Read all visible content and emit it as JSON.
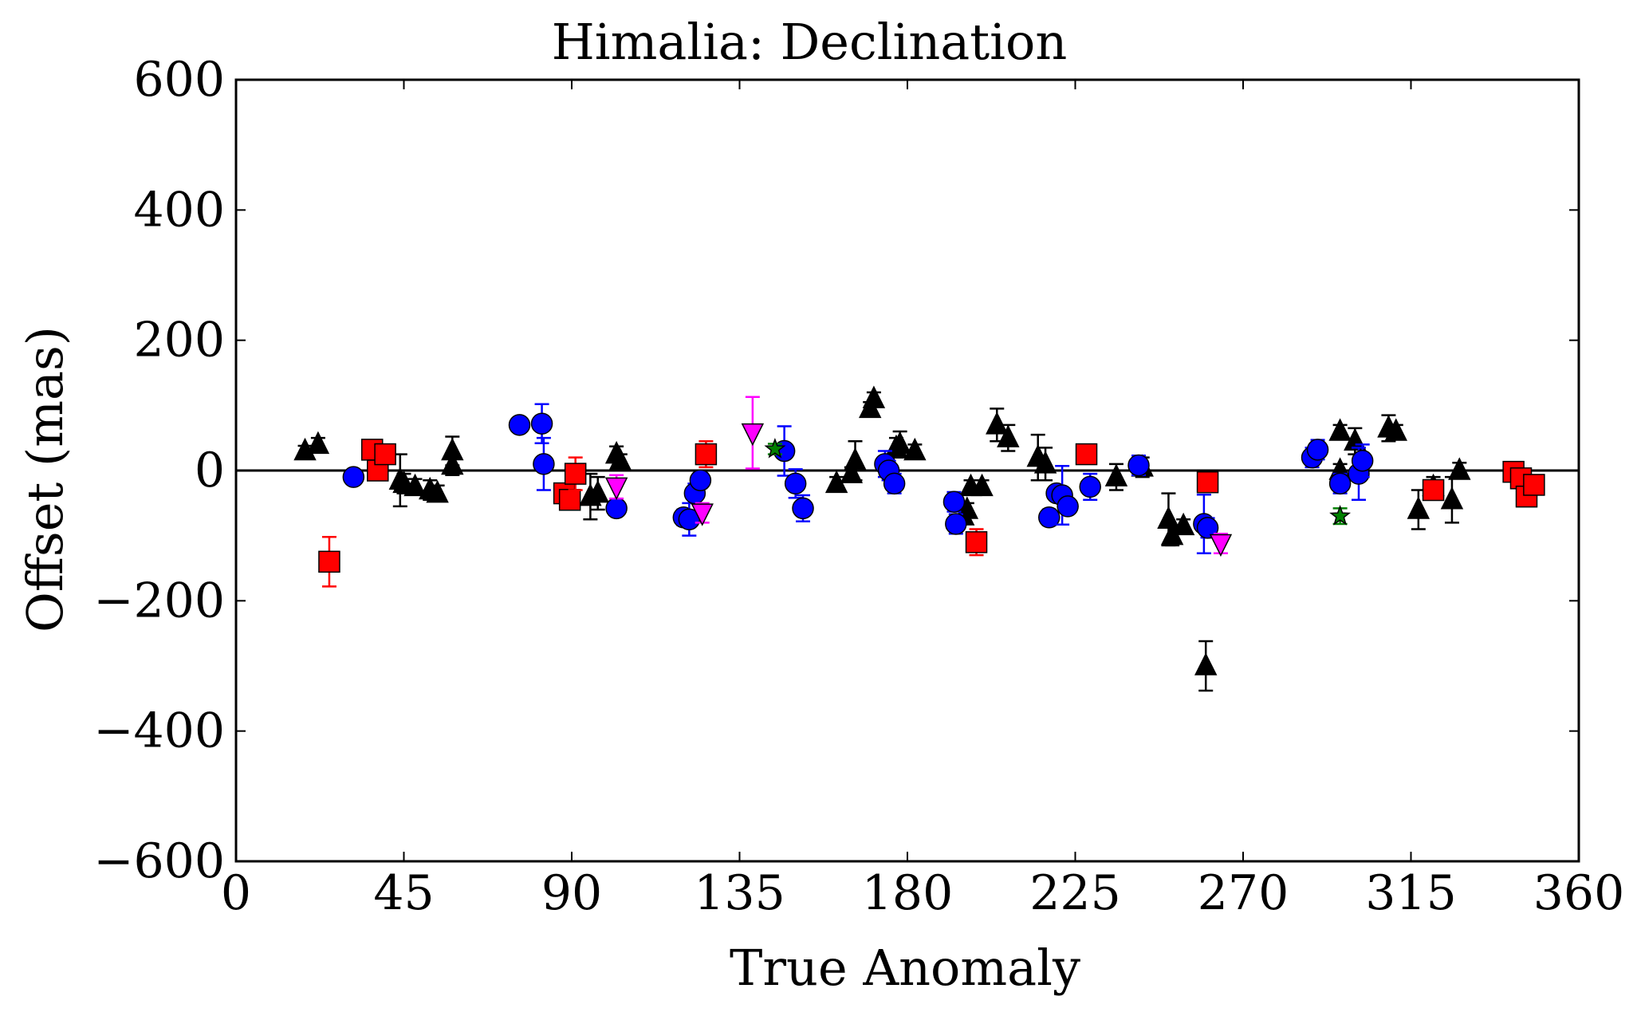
{
  "chart_data": {
    "type": "scatter",
    "title": "Himalia: Declination",
    "xlabel": "True Anomaly",
    "ylabel": "Offset (mas)",
    "xlim": [
      0,
      360
    ],
    "ylim": [
      -600,
      600
    ],
    "xticks": [
      0,
      45,
      90,
      135,
      180,
      225,
      270,
      315,
      360
    ],
    "yticks": [
      -600,
      -400,
      -200,
      0,
      200,
      400,
      600
    ],
    "xtick_labels": [
      "0",
      "45",
      "90",
      "135",
      "180",
      "225",
      "270",
      "315",
      "360"
    ],
    "ytick_labels": [
      "−600",
      "−400",
      "−200",
      "0",
      "200",
      "400",
      "600"
    ],
    "grid": false,
    "legend": false,
    "reference_line": {
      "y": 0
    },
    "series": [
      {
        "marker": "triangle-up",
        "color": "#000000",
        "errcolor": "#000000",
        "points": [
          {
            "x": 18.5,
            "y": 30,
            "err": 8
          },
          {
            "x": 22,
            "y": 40,
            "err": 10
          },
          {
            "x": 44,
            "y": -15,
            "err": 40
          },
          {
            "x": 45,
            "y": -20,
            "err": 15
          },
          {
            "x": 48,
            "y": -25,
            "err": 12
          },
          {
            "x": 52,
            "y": -30,
            "err": 15
          },
          {
            "x": 54,
            "y": -35,
            "err": 12
          },
          {
            "x": 58,
            "y": 8,
            "err": 15
          },
          {
            "x": 58,
            "y": 30,
            "err": 22
          },
          {
            "x": 95,
            "y": -40,
            "err": 35
          },
          {
            "x": 97,
            "y": -35,
            "err": 25
          },
          {
            "x": 102,
            "y": 25,
            "err": 12
          },
          {
            "x": 103,
            "y": 15,
            "err": 10
          },
          {
            "x": 161,
            "y": -20,
            "err": 10
          },
          {
            "x": 165,
            "y": -5,
            "err": 10
          },
          {
            "x": 166,
            "y": 15,
            "err": 30
          },
          {
            "x": 170,
            "y": 95,
            "err": 10
          },
          {
            "x": 171,
            "y": 110,
            "err": 10
          },
          {
            "x": 177,
            "y": 35,
            "err": 15
          },
          {
            "x": 178,
            "y": 40,
            "err": 20
          },
          {
            "x": 182,
            "y": 30,
            "err": 10
          },
          {
            "x": 195,
            "y": -70,
            "err": 10
          },
          {
            "x": 196,
            "y": -60,
            "err": 10
          },
          {
            "x": 197,
            "y": -25,
            "err": 10
          },
          {
            "x": 200,
            "y": -25,
            "err": 10
          },
          {
            "x": 204,
            "y": 70,
            "err": 25
          },
          {
            "x": 207,
            "y": 50,
            "err": 20
          },
          {
            "x": 215,
            "y": 20,
            "err": 35
          },
          {
            "x": 217,
            "y": 10,
            "err": 25
          },
          {
            "x": 236,
            "y": -10,
            "err": 20
          },
          {
            "x": 243,
            "y": 5,
            "err": 15
          },
          {
            "x": 250,
            "y": -75,
            "err": 40
          },
          {
            "x": 251,
            "y": -100,
            "err": 15
          },
          {
            "x": 254,
            "y": -85,
            "err": 10
          },
          {
            "x": 260,
            "y": -300,
            "err": 38
          },
          {
            "x": 296,
            "y": 60,
            "err": 10
          },
          {
            "x": 296,
            "y": 0,
            "err": 10
          },
          {
            "x": 300,
            "y": 45,
            "err": 20
          },
          {
            "x": 309,
            "y": 65,
            "err": 20
          },
          {
            "x": 311,
            "y": 60,
            "err": 10
          },
          {
            "x": 317,
            "y": -60,
            "err": 30
          },
          {
            "x": 321,
            "y": -25,
            "err": 15
          },
          {
            "x": 326,
            "y": -45,
            "err": 35
          },
          {
            "x": 328,
            "y": 0,
            "err": 12
          }
        ]
      },
      {
        "marker": "circle",
        "color": "#0000ff",
        "errcolor": "#0000ff",
        "points": [
          {
            "x": 31.5,
            "y": -10,
            "err": 8
          },
          {
            "x": 76,
            "y": 70,
            "err": 8
          },
          {
            "x": 82,
            "y": 72,
            "err": 30
          },
          {
            "x": 82.5,
            "y": 10,
            "err": 40
          },
          {
            "x": 102,
            "y": -58,
            "err": 10
          },
          {
            "x": 120,
            "y": -72,
            "err": 12
          },
          {
            "x": 121.5,
            "y": -75,
            "err": 25
          },
          {
            "x": 123,
            "y": -35,
            "err": 15
          },
          {
            "x": 124.5,
            "y": -15,
            "err": 12
          },
          {
            "x": 147,
            "y": 30,
            "err": 38
          },
          {
            "x": 150,
            "y": -20,
            "err": 22
          },
          {
            "x": 152,
            "y": -58,
            "err": 20
          },
          {
            "x": 174,
            "y": 10,
            "err": 20
          },
          {
            "x": 175,
            "y": 0,
            "err": 15
          },
          {
            "x": 176.5,
            "y": -20,
            "err": 15
          },
          {
            "x": 192.5,
            "y": -48,
            "err": 15
          },
          {
            "x": 193,
            "y": -82,
            "err": 15
          },
          {
            "x": 218,
            "y": -72,
            "err": 12
          },
          {
            "x": 220,
            "y": -35,
            "err": 10
          },
          {
            "x": 221.5,
            "y": -38,
            "err": 45
          },
          {
            "x": 223,
            "y": -55,
            "err": 10
          },
          {
            "x": 229,
            "y": -25,
            "err": 20
          },
          {
            "x": 242,
            "y": 8,
            "err": 15
          },
          {
            "x": 259.5,
            "y": -82,
            "err": 45
          },
          {
            "x": 260.5,
            "y": -88,
            "err": 15
          },
          {
            "x": 288.5,
            "y": 20,
            "err": 15
          },
          {
            "x": 290,
            "y": 32,
            "err": 15
          },
          {
            "x": 296,
            "y": -20,
            "err": 15
          },
          {
            "x": 301,
            "y": -5,
            "err": 40
          },
          {
            "x": 302,
            "y": 15,
            "err": 25
          }
        ]
      },
      {
        "marker": "square",
        "color": "#ff0000",
        "errcolor": "#ff0000",
        "points": [
          {
            "x": 25,
            "y": -140,
            "err": 38
          },
          {
            "x": 36.5,
            "y": 32,
            "err": 10
          },
          {
            "x": 38,
            "y": 0,
            "err": 10
          },
          {
            "x": 40,
            "y": 25,
            "err": 12
          },
          {
            "x": 88,
            "y": -35,
            "err": 15
          },
          {
            "x": 89.5,
            "y": -45,
            "err": 15
          },
          {
            "x": 91,
            "y": -5,
            "err": 25
          },
          {
            "x": 126,
            "y": 25,
            "err": 20
          },
          {
            "x": 198.5,
            "y": -110,
            "err": 20
          },
          {
            "x": 228,
            "y": 25,
            "err": 10
          },
          {
            "x": 260.5,
            "y": -18,
            "err": 10
          },
          {
            "x": 321,
            "y": -30,
            "err": 10
          },
          {
            "x": 342.5,
            "y": -2,
            "err": 10
          },
          {
            "x": 344.5,
            "y": -12,
            "err": 10
          },
          {
            "x": 346,
            "y": -40,
            "err": 10
          },
          {
            "x": 348,
            "y": -22,
            "err": 10
          }
        ]
      },
      {
        "marker": "triangle-down",
        "color": "#ff00ff",
        "errcolor": "#ff00ff",
        "points": [
          {
            "x": 102,
            "y": -25,
            "err": 18
          },
          {
            "x": 125,
            "y": -65,
            "err": 15
          },
          {
            "x": 138.5,
            "y": 58,
            "err": 55
          },
          {
            "x": 264,
            "y": -112,
            "err": 15
          }
        ]
      },
      {
        "marker": "star",
        "color": "#008000",
        "errcolor": "#008000",
        "points": [
          {
            "x": 144.5,
            "y": 33,
            "err": 8
          },
          {
            "x": 296,
            "y": -70,
            "err": 12
          }
        ]
      }
    ]
  }
}
